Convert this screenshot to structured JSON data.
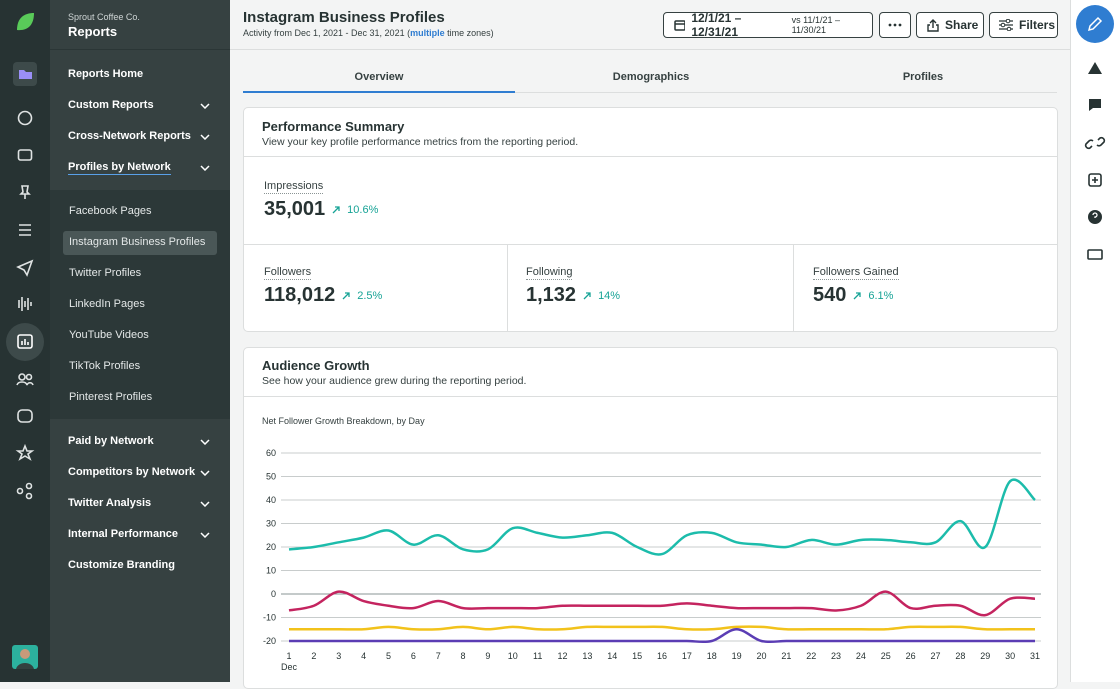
{
  "sidebar": {
    "org": "Sprout Coffee Co.",
    "title": "Reports",
    "items": [
      {
        "label": "Reports Home"
      },
      {
        "label": "Custom Reports",
        "expandable": true
      },
      {
        "label": "Cross-Network Reports",
        "expandable": true
      },
      {
        "label": "Profiles by Network",
        "expandable": true,
        "selected": true,
        "children": [
          {
            "label": "Facebook Pages"
          },
          {
            "label": "Instagram Business Profiles",
            "active": true
          },
          {
            "label": "Twitter Profiles"
          },
          {
            "label": "LinkedIn Pages"
          },
          {
            "label": "YouTube Videos"
          },
          {
            "label": "TikTok Profiles"
          },
          {
            "label": "Pinterest Profiles"
          }
        ]
      },
      {
        "label": "Paid by Network",
        "expandable": true
      },
      {
        "label": "Competitors by Network",
        "expandable": true
      },
      {
        "label": "Twitter Analysis",
        "expandable": true
      },
      {
        "label": "Internal Performance",
        "expandable": true
      },
      {
        "label": "Customize Branding"
      }
    ]
  },
  "header": {
    "title": "Instagram Business Profiles",
    "subtitle_parts": [
      "Activity from Dec 1, 2021 - Dec 31, 2021 (",
      "multiple",
      " time zones)"
    ],
    "date_range": "12/1/21 – 12/31/21",
    "compare_range": "vs 11/1/21 – 11/30/21",
    "share": "Share",
    "filters": "Filters"
  },
  "tabs": {
    "items": [
      "Overview",
      "Demographics",
      "Profiles"
    ],
    "active": 0
  },
  "performance": {
    "title": "Performance Summary",
    "subtitle": "View your key profile performance metrics from the reporting period.",
    "metrics": [
      {
        "label": "Impressions",
        "value": "35,001",
        "change": "10.6%"
      },
      {
        "label": "Followers",
        "value": "118,012",
        "change": "2.5%"
      },
      {
        "label": "Following",
        "value": "1,132",
        "change": "14%"
      },
      {
        "label": "Followers Gained",
        "value": "540",
        "change": "6.1%"
      }
    ]
  },
  "audience": {
    "title": "Audience Growth",
    "subtitle": "See how your audience grew during the reporting period."
  },
  "chart_data": {
    "type": "line",
    "title": "Net Follower Growth Breakdown, by Day",
    "categories": [
      1,
      2,
      3,
      4,
      5,
      6,
      7,
      8,
      9,
      10,
      11,
      12,
      13,
      14,
      15,
      16,
      17,
      18,
      19,
      20,
      21,
      22,
      23,
      24,
      25,
      26,
      27,
      28,
      29,
      30,
      31
    ],
    "x_sublabel": "Dec",
    "ylim": [
      -20,
      60
    ],
    "yticks": [
      60,
      50,
      40,
      30,
      20,
      10,
      0,
      -10,
      -20
    ],
    "grid": true,
    "series": [
      {
        "color": "#1cbcab",
        "values": [
          19,
          20,
          22,
          24,
          27,
          21,
          25,
          19,
          19,
          28,
          26,
          24,
          25,
          26,
          20,
          17,
          25,
          26,
          22,
          21,
          20,
          23,
          21,
          23,
          23,
          22,
          22,
          31,
          20,
          48,
          40
        ]
      },
      {
        "color": "#c4245f",
        "values": [
          -7,
          -5,
          1,
          -3,
          -5,
          -6,
          -3,
          -6,
          -6,
          -6,
          -6,
          -5,
          -5,
          -5,
          -5,
          -5,
          -4,
          -5,
          -6,
          -6,
          -6,
          -6,
          -7,
          -5,
          1,
          -6,
          -5,
          -5,
          -9,
          -2,
          -2
        ]
      },
      {
        "color": "#f2c21b",
        "values": [
          -15,
          -15,
          -15,
          -15,
          -14,
          -15,
          -15,
          -14,
          -15,
          -14,
          -15,
          -15,
          -14,
          -14,
          -14,
          -14,
          -15,
          -15,
          -14,
          -14,
          -15,
          -15,
          -15,
          -15,
          -15,
          -14,
          -14,
          -14,
          -15,
          -15,
          -15
        ]
      },
      {
        "color": "#5b3db4",
        "values": [
          -20,
          -20,
          -20,
          -20,
          -20,
          -20,
          -20,
          -20,
          -20,
          -20,
          -20,
          -20,
          -20,
          -20,
          -20,
          -20,
          -20,
          -20,
          -15,
          -20,
          -20,
          -20,
          -20,
          -20,
          -20,
          -20,
          -20,
          -20,
          -20,
          -20,
          -20
        ]
      }
    ]
  }
}
